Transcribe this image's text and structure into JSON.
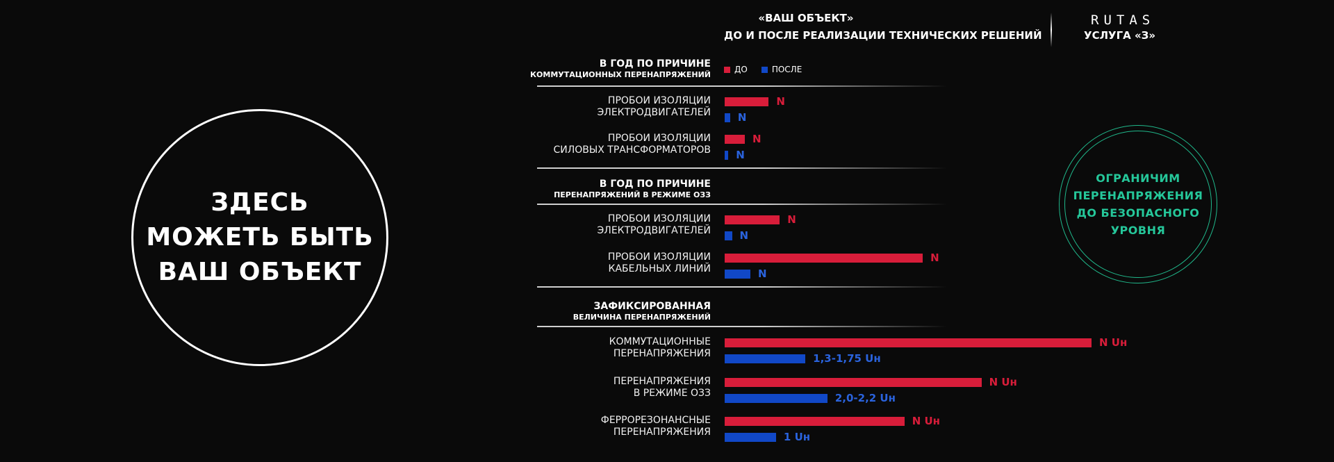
{
  "left_circle": {
    "lines": [
      "ЗДЕСЬ",
      "МОЖЕТЬ БЫТЬ",
      "ВАШ ОБЪЕКТ"
    ]
  },
  "header": {
    "title": "«ВАШ ОБЪЕКТ»",
    "subtitle": "ДО И ПОСЛЕ  РЕАЛИЗАЦИИ ТЕХНИЧЕСКИХ РЕШЕНИЙ"
  },
  "brand": {
    "logo": "RUTAS",
    "service": "УСЛУГА «З»"
  },
  "legend": {
    "before": "ДО",
    "after": "ПОСЛЕ"
  },
  "badge": {
    "lines": [
      "ОГРАНИЧИМ",
      "ПЕРЕНАПРЯЖЕНИЯ",
      "ДО БЕЗОПАСНОГО",
      "УРОВНЯ"
    ]
  },
  "colors": {
    "before": "#d81d3a",
    "after": "#1148c7",
    "accent": "#25c79a"
  },
  "chart_data": {
    "type": "bar",
    "orientation": "horizontal",
    "value_scale": "unlabeled (relative bar lengths only)",
    "legend": [
      "ДО",
      "ПОСЛЕ"
    ],
    "sections": [
      {
        "title": "В ГОД ПО ПРИЧИНЕ",
        "subtitle": "КОММУТАЦИОННЫХ ПЕРЕНАПРЯЖЕНИЙ",
        "rows": [
          {
            "label": [
              "ПРОБОИ ИЗОЛЯЦИИ",
              "ЭЛЕКТРОДВИГАТЕЛЕЙ"
            ],
            "before": {
              "value": 12,
              "label": "N"
            },
            "after": {
              "value": 1.5,
              "label": "N"
            }
          },
          {
            "label": [
              "ПРОБОИ ИЗОЛЯЦИИ",
              "СИЛОВЫХ ТРАНСФОРМАТОРОВ"
            ],
            "before": {
              "value": 5.5,
              "label": "N"
            },
            "after": {
              "value": 1,
              "label": "N"
            }
          }
        ]
      },
      {
        "title": "В ГОД ПО ПРИЧИНЕ",
        "subtitle": "ПЕРЕНАПРЯЖЕНИЙ В РЕЖИМЕ ОЗЗ",
        "rows": [
          {
            "label": [
              "ПРОБОИ ИЗОЛЯЦИИ",
              "ЭЛЕКТРОДВИГАТЕЛЕЙ"
            ],
            "before": {
              "value": 15,
              "label": "N"
            },
            "after": {
              "value": 2,
              "label": "N"
            }
          },
          {
            "label": [
              "ПРОБОИ ИЗОЛЯЦИИ",
              "КАБЕЛЬНЫХ ЛИНИЙ"
            ],
            "before": {
              "value": 54,
              "label": "N"
            },
            "after": {
              "value": 7,
              "label": "N"
            }
          }
        ]
      },
      {
        "title": "ЗАФИКСИРОВАННАЯ",
        "subtitle": "ВЕЛИЧИНА ПЕРЕНАПРЯЖЕНИЙ",
        "rows": [
          {
            "label": [
              "КОММУТАЦИОННЫЕ",
              "ПЕРЕНАПРЯЖЕНИЯ"
            ],
            "before": {
              "value": 100,
              "label": "N Uн"
            },
            "after": {
              "value": 22,
              "label": "1,3-1,75 Uн"
            }
          },
          {
            "label": [
              "ПЕРЕНАПРЯЖЕНИЯ",
              "В РЕЖИМЕ ОЗЗ"
            ],
            "before": {
              "value": 70,
              "label": "N Uн"
            },
            "after": {
              "value": 28,
              "label": "2,0-2,2 Uн"
            }
          },
          {
            "label": [
              "ФЕРРОРЕЗОНАНСНЫЕ",
              "ПЕРЕНАПРЯЖЕНИЯ"
            ],
            "before": {
              "value": 49,
              "label": "N Uн"
            },
            "after": {
              "value": 14,
              "label": "1 Uн"
            }
          }
        ]
      }
    ]
  }
}
